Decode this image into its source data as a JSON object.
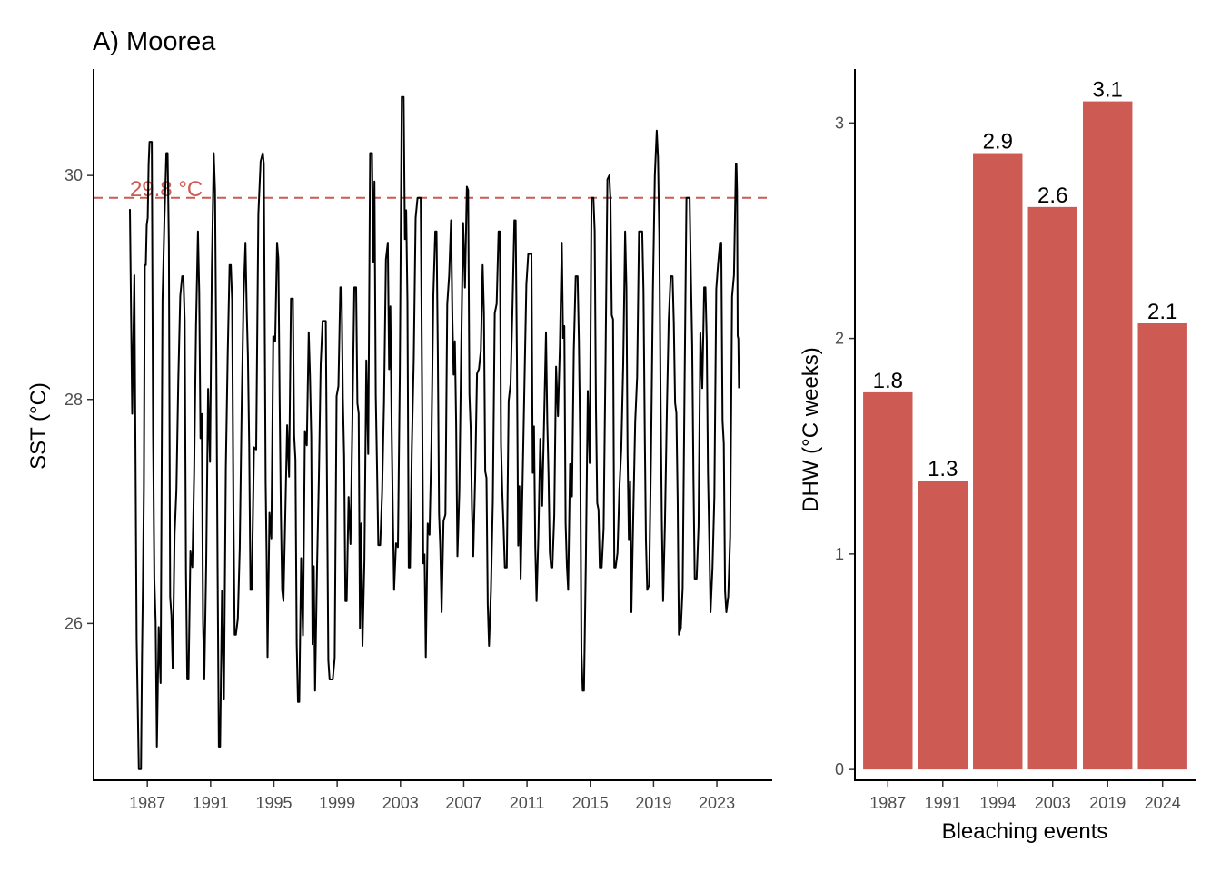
{
  "chart_data": [
    {
      "type": "line",
      "title": "A) Moorea",
      "xlabel": "",
      "ylabel": "SST (°C)",
      "xlim": [
        1983.6,
        2026.5
      ],
      "ylim": [
        24.6,
        30.95
      ],
      "x_ticks": [
        "1987",
        "1991",
        "1995",
        "1999",
        "2003",
        "2007",
        "2011",
        "2015",
        "2019",
        "2023"
      ],
      "y_ticks": [
        "26",
        "28",
        "30"
      ],
      "threshold": {
        "value": 29.8,
        "label": "29.8 °C",
        "color": "#cd5a53"
      },
      "series": [
        {
          "color": "#000000",
          "annual_peaks": [
            {
              "x": 1985.9,
              "y": 29.7
            },
            {
              "x": 1986.9,
              "y": 29.2
            },
            {
              "x": 1987.2,
              "y": 30.3
            },
            {
              "x": 1988.2,
              "y": 30.2
            },
            {
              "x": 1989.2,
              "y": 29.1
            },
            {
              "x": 1990.2,
              "y": 29.5
            },
            {
              "x": 1991.2,
              "y": 30.2
            },
            {
              "x": 1992.2,
              "y": 29.2
            },
            {
              "x": 1993.2,
              "y": 29.4
            },
            {
              "x": 1994.3,
              "y": 30.2
            },
            {
              "x": 1995.2,
              "y": 29.4
            },
            {
              "x": 1996.2,
              "y": 28.9
            },
            {
              "x": 1997.2,
              "y": 28.6
            },
            {
              "x": 1998.2,
              "y": 28.7
            },
            {
              "x": 1999.2,
              "y": 29.0
            },
            {
              "x": 2000.2,
              "y": 29.0
            },
            {
              "x": 2001.2,
              "y": 30.2
            },
            {
              "x": 2002.2,
              "y": 29.4
            },
            {
              "x": 2003.2,
              "y": 30.7
            },
            {
              "x": 2004.2,
              "y": 29.8
            },
            {
              "x": 2005.2,
              "y": 29.5
            },
            {
              "x": 2006.2,
              "y": 29.6
            },
            {
              "x": 2007.2,
              "y": 29.9
            },
            {
              "x": 2008.2,
              "y": 29.2
            },
            {
              "x": 2009.2,
              "y": 29.5
            },
            {
              "x": 2010.2,
              "y": 29.6
            },
            {
              "x": 2011.2,
              "y": 29.3
            },
            {
              "x": 2012.2,
              "y": 28.6
            },
            {
              "x": 2013.2,
              "y": 29.4
            },
            {
              "x": 2014.2,
              "y": 29.1
            },
            {
              "x": 2015.2,
              "y": 29.8
            },
            {
              "x": 2016.2,
              "y": 30.0
            },
            {
              "x": 2017.2,
              "y": 29.5
            },
            {
              "x": 2018.2,
              "y": 29.5
            },
            {
              "x": 2019.2,
              "y": 30.4
            },
            {
              "x": 2020.2,
              "y": 29.1
            },
            {
              "x": 2021.2,
              "y": 29.8
            },
            {
              "x": 2022.2,
              "y": 29.0
            },
            {
              "x": 2023.2,
              "y": 29.4
            },
            {
              "x": 2024.2,
              "y": 30.1
            }
          ],
          "annual_troughs": [
            {
              "x": 1986.6,
              "y": 24.7
            },
            {
              "x": 1987.6,
              "y": 24.9
            },
            {
              "x": 1988.6,
              "y": 25.6
            },
            {
              "x": 1989.6,
              "y": 25.5
            },
            {
              "x": 1990.6,
              "y": 25.5
            },
            {
              "x": 1991.6,
              "y": 24.9
            },
            {
              "x": 1992.6,
              "y": 25.9
            },
            {
              "x": 1993.6,
              "y": 26.3
            },
            {
              "x": 1994.6,
              "y": 25.7
            },
            {
              "x": 1995.6,
              "y": 26.2
            },
            {
              "x": 1996.6,
              "y": 25.3
            },
            {
              "x": 1997.6,
              "y": 25.4
            },
            {
              "x": 1998.6,
              "y": 25.5
            },
            {
              "x": 1999.6,
              "y": 26.2
            },
            {
              "x": 2000.6,
              "y": 25.8
            },
            {
              "x": 2001.6,
              "y": 26.7
            },
            {
              "x": 2002.6,
              "y": 26.3
            },
            {
              "x": 2003.6,
              "y": 26.5
            },
            {
              "x": 2004.6,
              "y": 25.7
            },
            {
              "x": 2005.6,
              "y": 26.1
            },
            {
              "x": 2006.6,
              "y": 26.6
            },
            {
              "x": 2007.6,
              "y": 26.6
            },
            {
              "x": 2008.6,
              "y": 25.8
            },
            {
              "x": 2009.6,
              "y": 26.5
            },
            {
              "x": 2010.6,
              "y": 26.4
            },
            {
              "x": 2011.6,
              "y": 26.2
            },
            {
              "x": 2012.6,
              "y": 26.5
            },
            {
              "x": 2013.6,
              "y": 26.3
            },
            {
              "x": 2014.6,
              "y": 25.4
            },
            {
              "x": 2015.6,
              "y": 26.5
            },
            {
              "x": 2016.6,
              "y": 26.5
            },
            {
              "x": 2017.6,
              "y": 26.1
            },
            {
              "x": 2018.6,
              "y": 26.3
            },
            {
              "x": 2019.6,
              "y": 26.2
            },
            {
              "x": 2020.6,
              "y": 25.9
            },
            {
              "x": 2021.6,
              "y": 26.4
            },
            {
              "x": 2022.6,
              "y": 26.1
            },
            {
              "x": 2023.6,
              "y": 26.1
            }
          ],
          "end_point": {
            "x": 2024.4,
            "y": 28.1
          }
        }
      ]
    },
    {
      "type": "bar",
      "xlabel": "Bleaching events",
      "ylabel": "DHW (°C weeks)",
      "ylim": [
        -0.05,
        3.25
      ],
      "y_ticks": [
        "0",
        "1",
        "2",
        "3"
      ],
      "categories": [
        "1987",
        "1991",
        "1994",
        "2003",
        "2019",
        "2024"
      ],
      "values": [
        1.75,
        1.34,
        2.86,
        2.61,
        3.1,
        2.07
      ],
      "labels": [
        "1.8",
        "1.3",
        "2.9",
        "2.6",
        "3.1",
        "2.1"
      ],
      "bar_color": "#cd5a53"
    }
  ]
}
